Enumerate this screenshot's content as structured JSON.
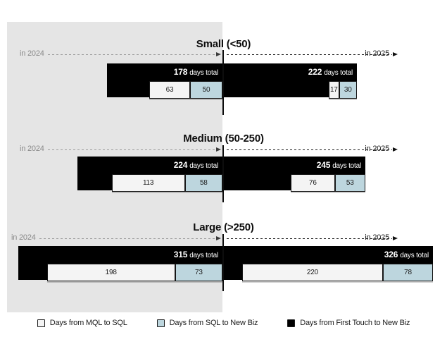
{
  "chart_data": {
    "type": "bar",
    "orientation": "horizontal",
    "unit": "days",
    "total_suffix": "days total",
    "timeline_labels": {
      "left": "in 2024",
      "right": "in 2025"
    },
    "legend_position": "bottom",
    "legend": [
      {
        "label": "Days from MQL to SQL",
        "color": "#f4f4f4"
      },
      {
        "label": "Days from SQL to New Biz",
        "color": "#bdd6de"
      },
      {
        "label": "Days from First Touch to New Biz",
        "color": "#000000"
      }
    ],
    "colors": {
      "panel_2024_background": "#e5e5e5",
      "first_touch_to_new_biz": "#000000",
      "mql_to_sql": "#f4f4f4",
      "sql_to_new_biz": "#bdd6de"
    },
    "groups": [
      {
        "title": "Small (<50)",
        "periods": [
          {
            "year": "2024",
            "total": 178,
            "mql_to_sql": 63,
            "sql_to_new_biz": 50
          },
          {
            "year": "2025",
            "total": 222,
            "mql_to_sql": 17,
            "sql_to_new_biz": 30
          }
        ]
      },
      {
        "title": "Medium (50-250)",
        "periods": [
          {
            "year": "2024",
            "total": 224,
            "mql_to_sql": 113,
            "sql_to_new_biz": 58
          },
          {
            "year": "2025",
            "total": 245,
            "mql_to_sql": 76,
            "sql_to_new_biz": 53
          }
        ]
      },
      {
        "title": "Large (>250)",
        "periods": [
          {
            "year": "2024",
            "total": 315,
            "mql_to_sql": 198,
            "sql_to_new_biz": 73
          },
          {
            "year": "2025",
            "total": 326,
            "mql_to_sql": 220,
            "sql_to_new_biz": 78
          }
        ]
      }
    ]
  }
}
